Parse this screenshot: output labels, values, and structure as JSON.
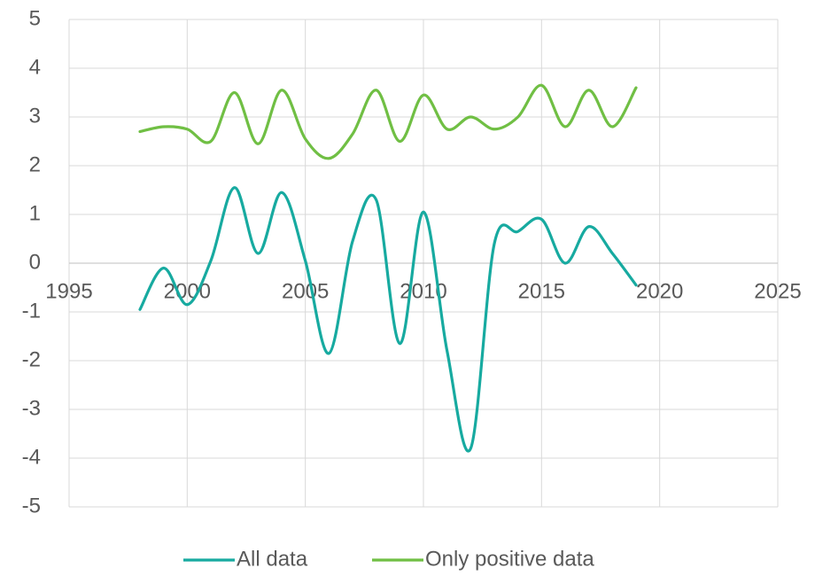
{
  "chart_data": {
    "type": "line",
    "x": [
      1998,
      1999,
      2000,
      2001,
      2002,
      2003,
      2004,
      2005,
      2006,
      2007,
      2008,
      2009,
      2010,
      2011,
      2012,
      2013,
      2014,
      2015,
      2016,
      2017,
      2018,
      2019
    ],
    "series": [
      {
        "name": "All data",
        "color": "#17aaa0",
        "values": [
          -0.95,
          -0.1,
          -0.85,
          0.05,
          1.55,
          0.2,
          1.45,
          0.05,
          -1.85,
          0.45,
          1.3,
          -1.65,
          1.05,
          -1.8,
          -3.8,
          0.4,
          0.65,
          0.9,
          0.0,
          0.75,
          0.2,
          -0.45
        ]
      },
      {
        "name": "Only positive data",
        "color": "#70bf44",
        "values": [
          2.7,
          2.8,
          2.75,
          2.5,
          3.5,
          2.45,
          3.55,
          2.55,
          2.15,
          2.65,
          3.55,
          2.5,
          3.45,
          2.75,
          3.0,
          2.75,
          3.0,
          3.65,
          2.8,
          3.55,
          2.8,
          3.6
        ]
      }
    ],
    "xlim": [
      1995,
      2025
    ],
    "xticks": [
      1995,
      2000,
      2005,
      2010,
      2015,
      2020,
      2025
    ],
    "ylim": [
      -5,
      5
    ],
    "yticks": [
      -5,
      -4,
      -3,
      -2,
      -1,
      0,
      1,
      2,
      3,
      4,
      5
    ],
    "grid": true,
    "smooth": true,
    "legend": "bottom"
  }
}
